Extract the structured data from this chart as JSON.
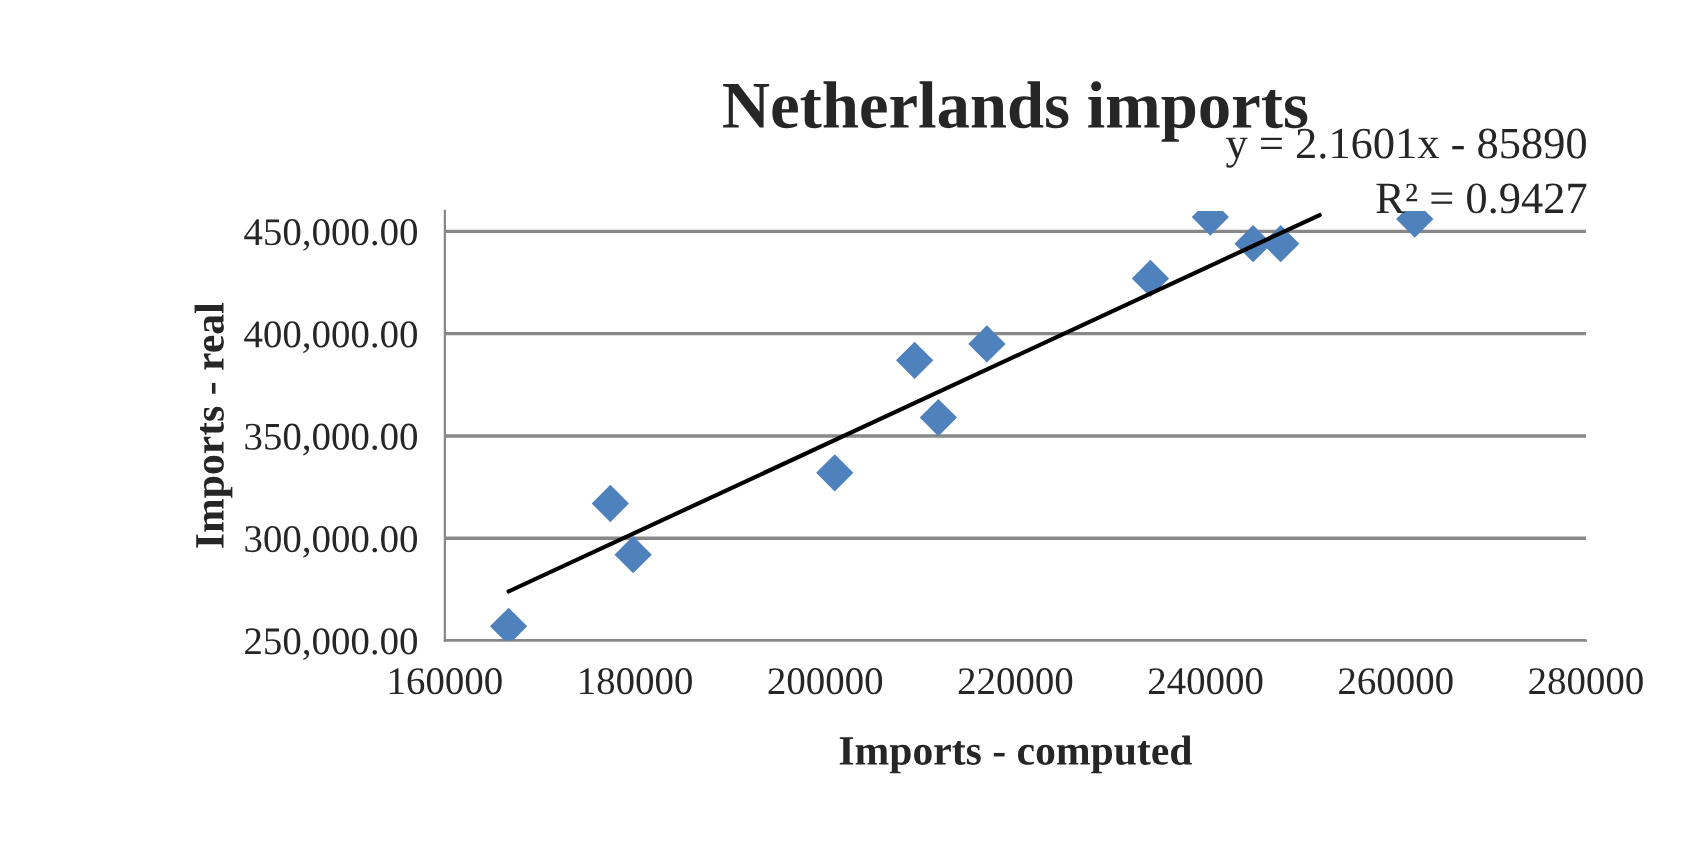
{
  "chart_data": {
    "type": "scatter",
    "title": "Netherlands imports",
    "xlabel": "Imports - computed",
    "ylabel": "Imports - real",
    "annotations": [
      "y = 2.1601x - 85890",
      "R² = 0.9427"
    ],
    "series": [
      {
        "color": "#4f81bd",
        "marker": "diamond",
        "x": [
          166700,
          177400,
          179800,
          201000,
          209400,
          211900,
          217000,
          234200,
          240500,
          245000,
          247900,
          262000
        ],
        "values": [
          257000,
          317000,
          292000,
          332000,
          387000,
          359000,
          395000,
          427000,
          457000,
          444000,
          444000,
          456000
        ]
      },
      {
        "type": "line",
        "color": "#000000",
        "x": [
          166700,
          252000
        ],
        "values": [
          274000,
          458000
        ]
      }
    ],
    "xlim": [
      160000,
      280000
    ],
    "xticks": [
      160000,
      180000,
      200000,
      220000,
      240000,
      260000,
      280000
    ],
    "ylim": [
      250000,
      460000
    ],
    "yticks": [
      {
        "value": 250000,
        "label": "250,000.00"
      },
      {
        "value": 300000,
        "label": "300,000.00"
      },
      {
        "value": 350000,
        "label": "350,000.00"
      },
      {
        "value": 400000,
        "label": "400,000.00"
      },
      {
        "value": 450000,
        "label": "450,000.00"
      }
    ],
    "grid": "y",
    "legend": false
  }
}
